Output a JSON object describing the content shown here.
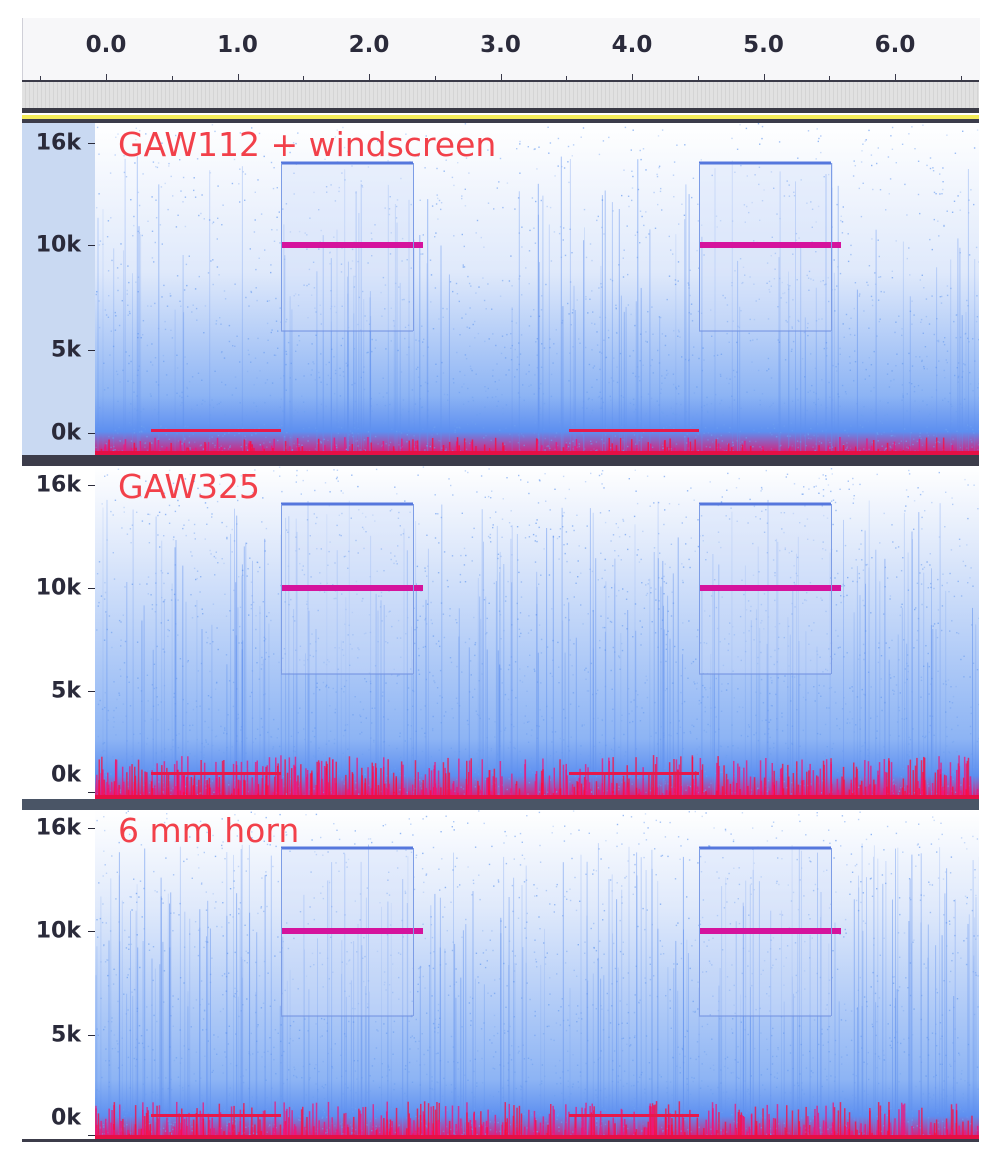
{
  "timeline": {
    "ticks": [
      "0.0",
      "1.0",
      "2.0",
      "3.0",
      "4.0",
      "5.0",
      "6.0"
    ]
  },
  "tracks": [
    {
      "title": "GAW112 + windscreen",
      "selected": true,
      "freq_labels": [
        "16k",
        "10k",
        "5k",
        "0k"
      ]
    },
    {
      "title": "GAW325",
      "selected": false,
      "freq_labels": [
        "16k",
        "10k",
        "5k",
        "0k"
      ]
    },
    {
      "title": "6 mm horn",
      "selected": false,
      "freq_labels": [
        "16k",
        "10k",
        "5k",
        "0k"
      ]
    }
  ],
  "colors": {
    "title_text": "#f2404a",
    "spectrum_low": "#6e9ff0",
    "spectrum_high": "#ff0055",
    "selected_ruler_bg": "#c9d9f2",
    "ruler_bg": "#ffffff"
  }
}
